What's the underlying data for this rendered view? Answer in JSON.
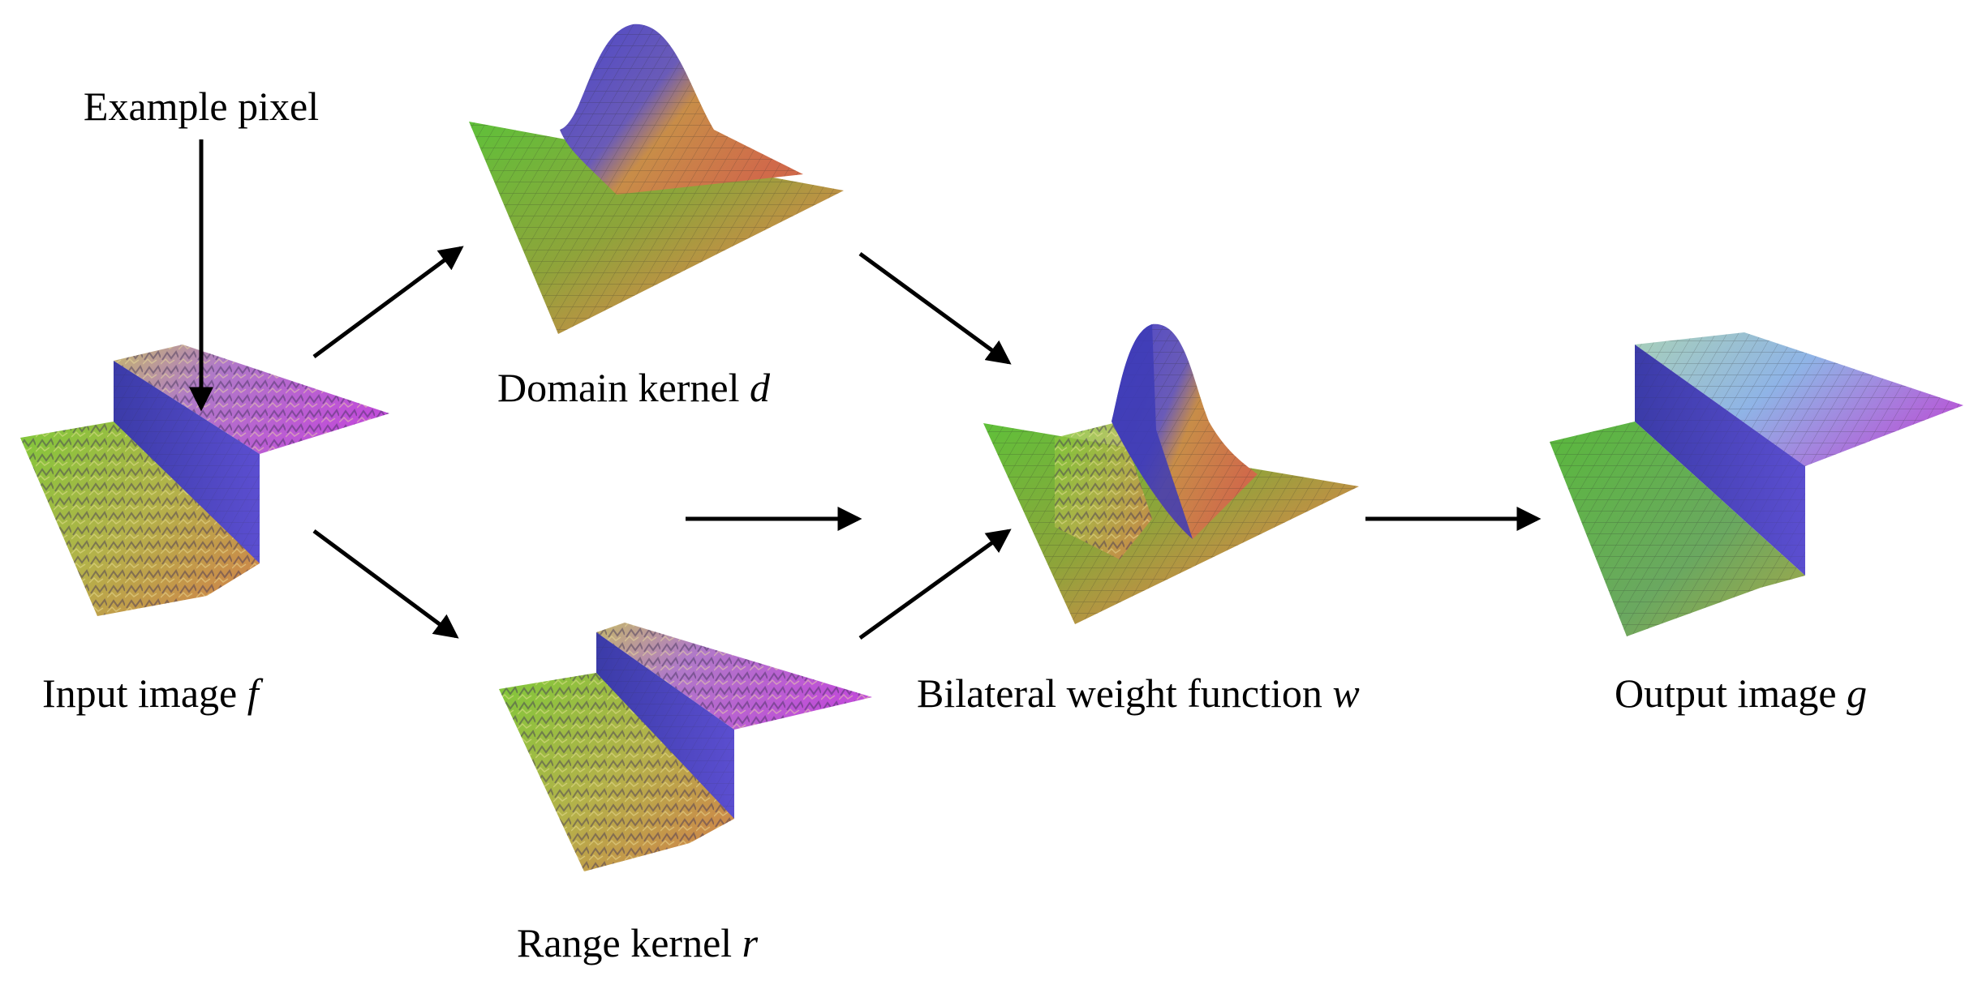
{
  "labels": {
    "example_pixel": "Example pixel",
    "input_image": {
      "text": "Input image ",
      "var": "f"
    },
    "domain_kernel": {
      "text": "Domain kernel ",
      "var": "d"
    },
    "range_kernel": {
      "text": "Range kernel ",
      "var": "r"
    },
    "bilateral_weight": {
      "text": "Bilateral weight function ",
      "var": "w"
    },
    "output_image": {
      "text": "Output image ",
      "var": "g"
    }
  },
  "colors": {
    "green": "#6dbf3a",
    "yellow": "#d6b04a",
    "orange": "#d8894a",
    "red": "#c9554f",
    "blue": "#3f3fbf",
    "purple": "#b04fd0",
    "lightblue": "#8fb7e6",
    "arrow": "#000000"
  }
}
